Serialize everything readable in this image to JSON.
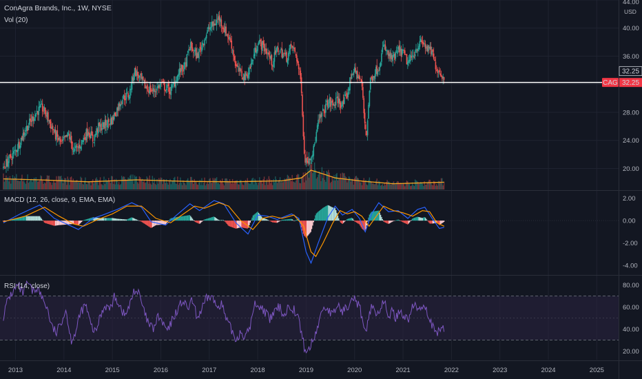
{
  "header": {
    "title": "ConAgra Brands, Inc., 1W, NYSE",
    "volume_label": "Vol (20)",
    "currency": "USD"
  },
  "colors": {
    "background": "#131722",
    "up": "#26a69a",
    "down": "#ef5350",
    "volume_ma": "#f5a623",
    "macd_line": "#2962ff",
    "signal_line": "#ff9800",
    "rsi_line": "#7e57c2",
    "rsi_band": "#2a2240",
    "price_line": "#ffffff",
    "badge": "#f23645"
  },
  "chart_data": [
    {
      "type": "candlestick",
      "name": "price",
      "symbol": "CAG",
      "last_price": "32.25",
      "ylim": [
        17,
        44
      ],
      "y_ticks": [
        "20.00",
        "24.00",
        "28.00",
        "32.00",
        "36.00",
        "40.00",
        "44.00"
      ],
      "x_ticks": [
        "2013",
        "2014",
        "2015",
        "2016",
        "2017",
        "2018",
        "2019",
        "2020",
        "2021",
        "2022",
        "2023",
        "2024",
        "2025"
      ],
      "close_path": [
        [
          2012.75,
          20.2
        ],
        [
          2013.0,
          22.5
        ],
        [
          2013.2,
          25.5
        ],
        [
          2013.45,
          28.2
        ],
        [
          2013.55,
          28.6
        ],
        [
          2013.65,
          27.5
        ],
        [
          2013.8,
          25.0
        ],
        [
          2013.95,
          23.5
        ],
        [
          2014.1,
          24.8
        ],
        [
          2014.2,
          22.5
        ],
        [
          2014.3,
          23.0
        ],
        [
          2014.4,
          24.2
        ],
        [
          2014.5,
          25.5
        ],
        [
          2014.6,
          24.0
        ],
        [
          2014.7,
          25.8
        ],
        [
          2014.8,
          26.0
        ],
        [
          2015.0,
          27.0
        ],
        [
          2015.2,
          30.0
        ],
        [
          2015.35,
          30.5
        ],
        [
          2015.45,
          34.0
        ],
        [
          2015.55,
          33.0
        ],
        [
          2015.7,
          31.5
        ],
        [
          2015.85,
          31.0
        ],
        [
          2016.0,
          32.0
        ],
        [
          2016.2,
          31.0
        ],
        [
          2016.4,
          34.0
        ],
        [
          2016.5,
          34.5
        ],
        [
          2016.6,
          37.5
        ],
        [
          2016.75,
          36.0
        ],
        [
          2016.9,
          38.5
        ],
        [
          2017.0,
          40.0
        ],
        [
          2017.1,
          40.5
        ],
        [
          2017.2,
          41.5
        ],
        [
          2017.3,
          40.0
        ],
        [
          2017.45,
          38.0
        ],
        [
          2017.55,
          34.5
        ],
        [
          2017.65,
          33.5
        ],
        [
          2017.75,
          33.0
        ],
        [
          2017.85,
          34.5
        ],
        [
          2018.0,
          38.0
        ],
        [
          2018.1,
          37.5
        ],
        [
          2018.2,
          36.5
        ],
        [
          2018.3,
          35.0
        ],
        [
          2018.4,
          37.0
        ],
        [
          2018.5,
          36.5
        ],
        [
          2018.6,
          35.8
        ],
        [
          2018.7,
          37.5
        ],
        [
          2018.8,
          36.0
        ],
        [
          2018.9,
          32.0
        ],
        [
          2018.96,
          22.0
        ],
        [
          2019.0,
          21.0
        ],
        [
          2019.05,
          21.5
        ],
        [
          2019.15,
          22.5
        ],
        [
          2019.25,
          26.5
        ],
        [
          2019.35,
          28.0
        ],
        [
          2019.45,
          29.5
        ],
        [
          2019.55,
          29.0
        ],
        [
          2019.65,
          29.8
        ],
        [
          2019.75,
          29.0
        ],
        [
          2019.85,
          30.5
        ],
        [
          2019.95,
          34.0
        ],
        [
          2020.05,
          33.5
        ],
        [
          2020.15,
          32.0
        ],
        [
          2020.2,
          27.0
        ],
        [
          2020.25,
          25.0
        ],
        [
          2020.32,
          32.5
        ],
        [
          2020.4,
          33.5
        ],
        [
          2020.5,
          34.5
        ],
        [
          2020.6,
          37.5
        ],
        [
          2020.7,
          36.0
        ],
        [
          2020.8,
          35.5
        ],
        [
          2020.9,
          36.8
        ],
        [
          2021.0,
          36.5
        ],
        [
          2021.1,
          35.0
        ],
        [
          2021.2,
          36.0
        ],
        [
          2021.3,
          37.5
        ],
        [
          2021.4,
          38.0
        ],
        [
          2021.5,
          37.0
        ],
        [
          2021.6,
          36.5
        ],
        [
          2021.65,
          35.0
        ],
        [
          2021.72,
          34.0
        ],
        [
          2021.8,
          33.5
        ],
        [
          2021.85,
          32.25
        ]
      ]
    },
    {
      "type": "bar",
      "name": "volume",
      "legend": "Vol (20)",
      "ma_path": [
        [
          2012.75,
          0.55
        ],
        [
          2013.5,
          0.5
        ],
        [
          2014.5,
          0.4
        ],
        [
          2015.5,
          0.5
        ],
        [
          2016.5,
          0.42
        ],
        [
          2017.5,
          0.4
        ],
        [
          2018.5,
          0.45
        ],
        [
          2018.9,
          0.6
        ],
        [
          2019.1,
          1.0
        ],
        [
          2019.3,
          0.85
        ],
        [
          2019.6,
          0.6
        ],
        [
          2020.2,
          0.42
        ],
        [
          2020.8,
          0.3
        ],
        [
          2021.5,
          0.35
        ],
        [
          2021.85,
          0.38
        ]
      ]
    },
    {
      "type": "line",
      "name": "MACD",
      "legend": "MACD (12, 26, close, 9, EMA, EMA)",
      "ylim": [
        -4.8,
        2.6
      ],
      "y_ticks": [
        "2.00",
        "0.00",
        "-2.00",
        "-4.00"
      ],
      "macd": [
        [
          2012.75,
          -0.2
        ],
        [
          2013.1,
          0.6
        ],
        [
          2013.5,
          1.4
        ],
        [
          2013.8,
          0.2
        ],
        [
          2014.1,
          -0.4
        ],
        [
          2014.3,
          -0.8
        ],
        [
          2014.6,
          0.2
        ],
        [
          2014.8,
          0.5
        ],
        [
          2015.1,
          1.0
        ],
        [
          2015.4,
          1.6
        ],
        [
          2015.6,
          1.2
        ],
        [
          2015.8,
          -0.1
        ],
        [
          2016.1,
          -0.4
        ],
        [
          2016.3,
          0.4
        ],
        [
          2016.6,
          1.5
        ],
        [
          2016.8,
          0.9
        ],
        [
          2017.1,
          1.8
        ],
        [
          2017.3,
          1.5
        ],
        [
          2017.55,
          -0.2
        ],
        [
          2017.8,
          -1.2
        ],
        [
          2018.0,
          0.5
        ],
        [
          2018.2,
          0.4
        ],
        [
          2018.4,
          0.1
        ],
        [
          2018.7,
          0.6
        ],
        [
          2018.85,
          0.2
        ],
        [
          2019.0,
          -2.8
        ],
        [
          2019.1,
          -3.8
        ],
        [
          2019.25,
          -2.0
        ],
        [
          2019.45,
          0.3
        ],
        [
          2019.6,
          1.3
        ],
        [
          2019.75,
          0.5
        ],
        [
          2019.95,
          1.0
        ],
        [
          2020.1,
          0.2
        ],
        [
          2020.22,
          -1.0
        ],
        [
          2020.35,
          0.6
        ],
        [
          2020.5,
          1.6
        ],
        [
          2020.7,
          0.8
        ],
        [
          2020.9,
          0.9
        ],
        [
          2021.1,
          0.2
        ],
        [
          2021.3,
          1.0
        ],
        [
          2021.45,
          1.2
        ],
        [
          2021.6,
          0.2
        ],
        [
          2021.75,
          -0.7
        ],
        [
          2021.85,
          -0.6
        ]
      ],
      "signal": [
        [
          2012.75,
          -0.1
        ],
        [
          2013.2,
          0.4
        ],
        [
          2013.6,
          1.2
        ],
        [
          2013.9,
          0.4
        ],
        [
          2014.2,
          -0.3
        ],
        [
          2014.4,
          -0.5
        ],
        [
          2014.7,
          0.1
        ],
        [
          2015.0,
          0.6
        ],
        [
          2015.3,
          1.3
        ],
        [
          2015.6,
          1.3
        ],
        [
          2015.9,
          0.2
        ],
        [
          2016.2,
          -0.2
        ],
        [
          2016.4,
          0.4
        ],
        [
          2016.7,
          1.3
        ],
        [
          2016.9,
          1.1
        ],
        [
          2017.2,
          1.6
        ],
        [
          2017.4,
          1.3
        ],
        [
          2017.65,
          0.0
        ],
        [
          2017.9,
          -0.8
        ],
        [
          2018.1,
          0.2
        ],
        [
          2018.3,
          0.4
        ],
        [
          2018.5,
          0.2
        ],
        [
          2018.75,
          0.5
        ],
        [
          2018.95,
          -0.5
        ],
        [
          2019.1,
          -2.8
        ],
        [
          2019.2,
          -3.2
        ],
        [
          2019.35,
          -2.0
        ],
        [
          2019.55,
          -0.2
        ],
        [
          2019.7,
          0.9
        ],
        [
          2019.85,
          0.6
        ],
        [
          2020.0,
          0.8
        ],
        [
          2020.15,
          0.4
        ],
        [
          2020.3,
          -0.5
        ],
        [
          2020.45,
          0.4
        ],
        [
          2020.6,
          1.3
        ],
        [
          2020.8,
          0.9
        ],
        [
          2021.0,
          0.7
        ],
        [
          2021.2,
          0.4
        ],
        [
          2021.4,
          0.9
        ],
        [
          2021.55,
          0.8
        ],
        [
          2021.7,
          -0.2
        ],
        [
          2021.85,
          -0.5
        ]
      ]
    },
    {
      "type": "line",
      "name": "RSI",
      "legend": "RSI (14, close)",
      "ylim": [
        12,
        88
      ],
      "y_ticks": [
        "80.00",
        "60.00",
        "40.00",
        "20.00"
      ],
      "upper_band": 70,
      "mid_band": 50,
      "lower_band": 30,
      "values": [
        [
          2012.75,
          52
        ],
        [
          2012.85,
          68
        ],
        [
          2012.95,
          74
        ],
        [
          2013.05,
          80
        ],
        [
          2013.15,
          72
        ],
        [
          2013.25,
          82
        ],
        [
          2013.35,
          74
        ],
        [
          2013.45,
          78
        ],
        [
          2013.55,
          68
        ],
        [
          2013.65,
          60
        ],
        [
          2013.75,
          42
        ],
        [
          2013.85,
          36
        ],
        [
          2013.95,
          48
        ],
        [
          2014.05,
          58
        ],
        [
          2014.1,
          40
        ],
        [
          2014.15,
          30
        ],
        [
          2014.25,
          38
        ],
        [
          2014.35,
          56
        ],
        [
          2014.45,
          62
        ],
        [
          2014.55,
          44
        ],
        [
          2014.65,
          36
        ],
        [
          2014.75,
          52
        ],
        [
          2014.85,
          62
        ],
        [
          2014.95,
          58
        ],
        [
          2015.05,
          70
        ],
        [
          2015.15,
          62
        ],
        [
          2015.25,
          52
        ],
        [
          2015.35,
          60
        ],
        [
          2015.45,
          76
        ],
        [
          2015.55,
          72
        ],
        [
          2015.65,
          56
        ],
        [
          2015.75,
          44
        ],
        [
          2015.85,
          40
        ],
        [
          2015.95,
          52
        ],
        [
          2016.05,
          44
        ],
        [
          2016.15,
          38
        ],
        [
          2016.25,
          50
        ],
        [
          2016.35,
          58
        ],
        [
          2016.45,
          66
        ],
        [
          2016.55,
          58
        ],
        [
          2016.65,
          66
        ],
        [
          2016.75,
          50
        ],
        [
          2016.85,
          58
        ],
        [
          2016.95,
          68
        ],
        [
          2017.05,
          70
        ],
        [
          2017.15,
          60
        ],
        [
          2017.25,
          64
        ],
        [
          2017.35,
          48
        ],
        [
          2017.45,
          40
        ],
        [
          2017.55,
          30
        ],
        [
          2017.65,
          38
        ],
        [
          2017.75,
          32
        ],
        [
          2017.85,
          44
        ],
        [
          2017.95,
          64
        ],
        [
          2018.05,
          60
        ],
        [
          2018.15,
          56
        ],
        [
          2018.25,
          48
        ],
        [
          2018.35,
          56
        ],
        [
          2018.45,
          60
        ],
        [
          2018.55,
          52
        ],
        [
          2018.65,
          62
        ],
        [
          2018.75,
          58
        ],
        [
          2018.85,
          48
        ],
        [
          2018.92,
          32
        ],
        [
          2018.97,
          22
        ],
        [
          2019.02,
          18
        ],
        [
          2019.08,
          24
        ],
        [
          2019.15,
          30
        ],
        [
          2019.25,
          44
        ],
        [
          2019.35,
          60
        ],
        [
          2019.45,
          58
        ],
        [
          2019.55,
          52
        ],
        [
          2019.65,
          62
        ],
        [
          2019.75,
          56
        ],
        [
          2019.85,
          60
        ],
        [
          2019.95,
          72
        ],
        [
          2020.05,
          64
        ],
        [
          2020.12,
          58
        ],
        [
          2020.18,
          40
        ],
        [
          2020.24,
          34
        ],
        [
          2020.3,
          56
        ],
        [
          2020.38,
          62
        ],
        [
          2020.46,
          52
        ],
        [
          2020.54,
          60
        ],
        [
          2020.62,
          64
        ],
        [
          2020.7,
          52
        ],
        [
          2020.78,
          56
        ],
        [
          2020.86,
          50
        ],
        [
          2020.94,
          58
        ],
        [
          2021.02,
          52
        ],
        [
          2021.1,
          48
        ],
        [
          2021.18,
          58
        ],
        [
          2021.26,
          62
        ],
        [
          2021.34,
          56
        ],
        [
          2021.42,
          64
        ],
        [
          2021.5,
          56
        ],
        [
          2021.58,
          46
        ],
        [
          2021.64,
          38
        ],
        [
          2021.7,
          34
        ],
        [
          2021.76,
          40
        ],
        [
          2021.82,
          42
        ],
        [
          2021.85,
          38
        ]
      ]
    }
  ]
}
